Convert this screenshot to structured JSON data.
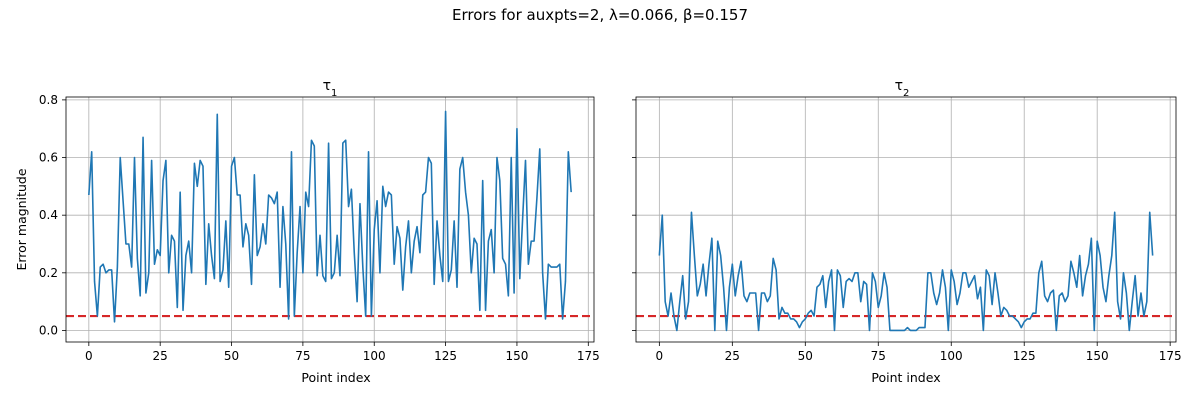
{
  "figure": {
    "title": "Errors for auxpts=2, λ=0.066, β=0.157"
  },
  "chart_data": [
    {
      "type": "line",
      "title": "τ1",
      "title_main": "τ",
      "title_sub": "1",
      "xlabel": "Point index",
      "ylabel": "Error magnitude",
      "xlim": [
        -8,
        177
      ],
      "ylim": [
        -0.04,
        0.81
      ],
      "xticks": [
        0,
        25,
        50,
        75,
        100,
        125,
        150,
        175
      ],
      "yticks": [
        0.0,
        0.2,
        0.4,
        0.6,
        0.8
      ],
      "ytick_labels": [
        "0.0",
        "0.2",
        "0.4",
        "0.6",
        "0.8"
      ],
      "grid": true,
      "line_color": "#1f77b4",
      "threshold": 0.05,
      "threshold_color": "#d62728",
      "y": [
        0.47,
        0.62,
        0.17,
        0.05,
        0.22,
        0.23,
        0.2,
        0.21,
        0.21,
        0.03,
        0.22,
        0.6,
        0.45,
        0.3,
        0.3,
        0.22,
        0.6,
        0.25,
        0.12,
        0.67,
        0.13,
        0.2,
        0.59,
        0.23,
        0.28,
        0.26,
        0.52,
        0.59,
        0.2,
        0.33,
        0.31,
        0.08,
        0.48,
        0.07,
        0.26,
        0.31,
        0.2,
        0.58,
        0.5,
        0.59,
        0.57,
        0.16,
        0.37,
        0.26,
        0.18,
        0.75,
        0.17,
        0.21,
        0.38,
        0.15,
        0.57,
        0.6,
        0.47,
        0.47,
        0.29,
        0.37,
        0.33,
        0.16,
        0.54,
        0.26,
        0.29,
        0.37,
        0.3,
        0.47,
        0.46,
        0.44,
        0.48,
        0.15,
        0.43,
        0.3,
        0.04,
        0.62,
        0.05,
        0.27,
        0.43,
        0.2,
        0.48,
        0.43,
        0.66,
        0.64,
        0.19,
        0.33,
        0.19,
        0.17,
        0.65,
        0.18,
        0.2,
        0.33,
        0.19,
        0.65,
        0.66,
        0.43,
        0.49,
        0.27,
        0.1,
        0.44,
        0.22,
        0.05,
        0.62,
        0.05,
        0.35,
        0.45,
        0.2,
        0.5,
        0.43,
        0.48,
        0.47,
        0.23,
        0.36,
        0.32,
        0.14,
        0.29,
        0.38,
        0.2,
        0.31,
        0.36,
        0.27,
        0.47,
        0.48,
        0.6,
        0.58,
        0.16,
        0.38,
        0.26,
        0.17,
        0.76,
        0.17,
        0.21,
        0.38,
        0.15,
        0.56,
        0.6,
        0.48,
        0.4,
        0.2,
        0.32,
        0.3,
        0.07,
        0.52,
        0.07,
        0.31,
        0.35,
        0.2,
        0.6,
        0.52,
        0.25,
        0.23,
        0.12,
        0.6,
        0.13,
        0.7,
        0.18,
        0.39,
        0.59,
        0.23,
        0.31,
        0.31,
        0.46,
        0.63,
        0.2,
        0.04,
        0.23,
        0.22,
        0.22,
        0.22,
        0.23,
        0.04,
        0.17,
        0.62,
        0.48
      ]
    },
    {
      "type": "line",
      "title": "τ2",
      "title_main": "τ",
      "title_sub": "2",
      "xlabel": "Point index",
      "ylabel": "",
      "xlim": [
        -8,
        177
      ],
      "ylim": [
        -0.04,
        0.81
      ],
      "xticks": [
        0,
        25,
        50,
        75,
        100,
        125,
        150,
        175
      ],
      "yticks": [
        0.0,
        0.2,
        0.4,
        0.6,
        0.8
      ],
      "grid": true,
      "line_color": "#1f77b4",
      "threshold": 0.05,
      "threshold_color": "#d62728",
      "y": [
        0.26,
        0.4,
        0.1,
        0.05,
        0.13,
        0.05,
        0.0,
        0.1,
        0.19,
        0.04,
        0.1,
        0.41,
        0.26,
        0.12,
        0.16,
        0.23,
        0.12,
        0.23,
        0.32,
        0.0,
        0.31,
        0.26,
        0.15,
        0.0,
        0.15,
        0.23,
        0.12,
        0.19,
        0.24,
        0.12,
        0.1,
        0.13,
        0.13,
        0.13,
        0.0,
        0.13,
        0.13,
        0.1,
        0.12,
        0.25,
        0.21,
        0.04,
        0.08,
        0.06,
        0.06,
        0.04,
        0.04,
        0.03,
        0.01,
        0.03,
        0.04,
        0.06,
        0.07,
        0.05,
        0.15,
        0.16,
        0.19,
        0.08,
        0.17,
        0.21,
        0.0,
        0.21,
        0.19,
        0.08,
        0.17,
        0.18,
        0.17,
        0.2,
        0.2,
        0.1,
        0.17,
        0.16,
        0.0,
        0.2,
        0.17,
        0.08,
        0.12,
        0.2,
        0.15,
        0.0,
        0.0,
        0.0,
        0.0,
        0.0,
        0.0,
        0.01,
        0.0,
        0.0,
        0.0,
        0.01,
        0.01,
        0.01,
        0.2,
        0.2,
        0.13,
        0.09,
        0.13,
        0.21,
        0.15,
        0.0,
        0.21,
        0.17,
        0.09,
        0.13,
        0.2,
        0.2,
        0.15,
        0.17,
        0.19,
        0.11,
        0.15,
        0.0,
        0.21,
        0.19,
        0.09,
        0.2,
        0.13,
        0.05,
        0.08,
        0.07,
        0.05,
        0.05,
        0.04,
        0.03,
        0.01,
        0.03,
        0.04,
        0.04,
        0.06,
        0.06,
        0.2,
        0.24,
        0.12,
        0.1,
        0.13,
        0.14,
        0.0,
        0.12,
        0.13,
        0.1,
        0.12,
        0.24,
        0.2,
        0.15,
        0.26,
        0.12,
        0.19,
        0.23,
        0.32,
        0.0,
        0.31,
        0.26,
        0.15,
        0.1,
        0.19,
        0.26,
        0.41,
        0.1,
        0.04,
        0.2,
        0.13,
        0.0,
        0.1,
        0.19,
        0.05,
        0.13,
        0.05,
        0.1,
        0.41,
        0.26
      ]
    }
  ]
}
